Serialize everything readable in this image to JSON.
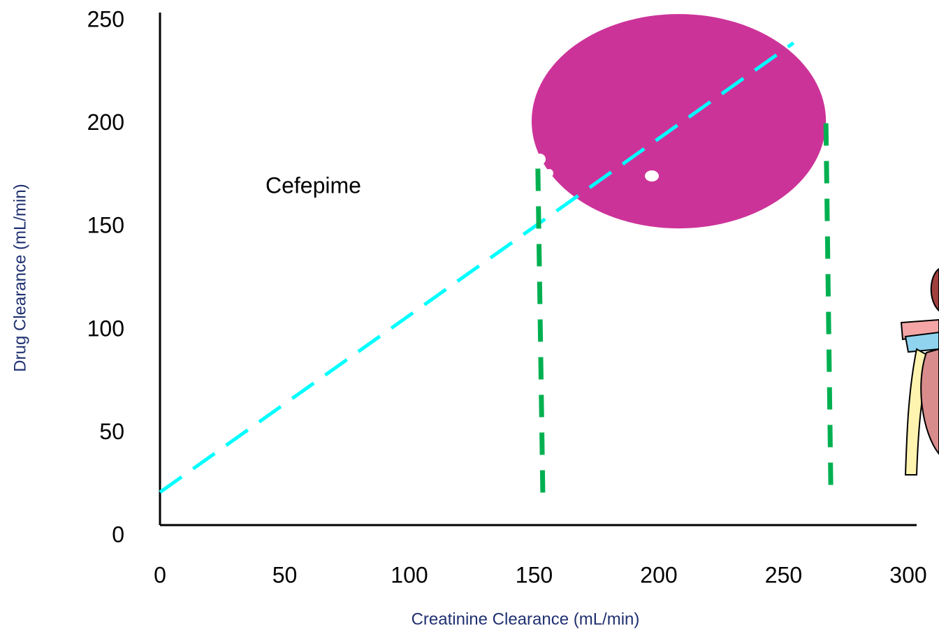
{
  "chart_data": {
    "type": "line",
    "x_label": "Creatinine  Clearance (mL/min)",
    "y_label": "Drug  Clearance (mL/min)",
    "annotation": "Cefepime",
    "xlim": [
      0,
      300
    ],
    "xticks": [
      0,
      50,
      100,
      150,
      200,
      250,
      300
    ],
    "ylim": [
      0,
      250
    ],
    "yticks": [
      0,
      50,
      100,
      150,
      200,
      250
    ],
    "series": [
      {
        "color": "#00ffff",
        "x": [
          0,
          254
        ],
        "values": [
          20,
          238
        ]
      },
      {
        "color": "#00b050",
        "x": [
          151.5,
          153.5
        ],
        "values": [
          177,
          18
        ]
      },
      {
        "color": "#00b050",
        "x": [
          267,
          269
        ],
        "values": [
          199,
          18
        ]
      }
    ],
    "ellipse": {
      "cx": 208,
      "cy": 200,
      "rx": 59,
      "ry": 52,
      "color": "#cc3399"
    }
  }
}
